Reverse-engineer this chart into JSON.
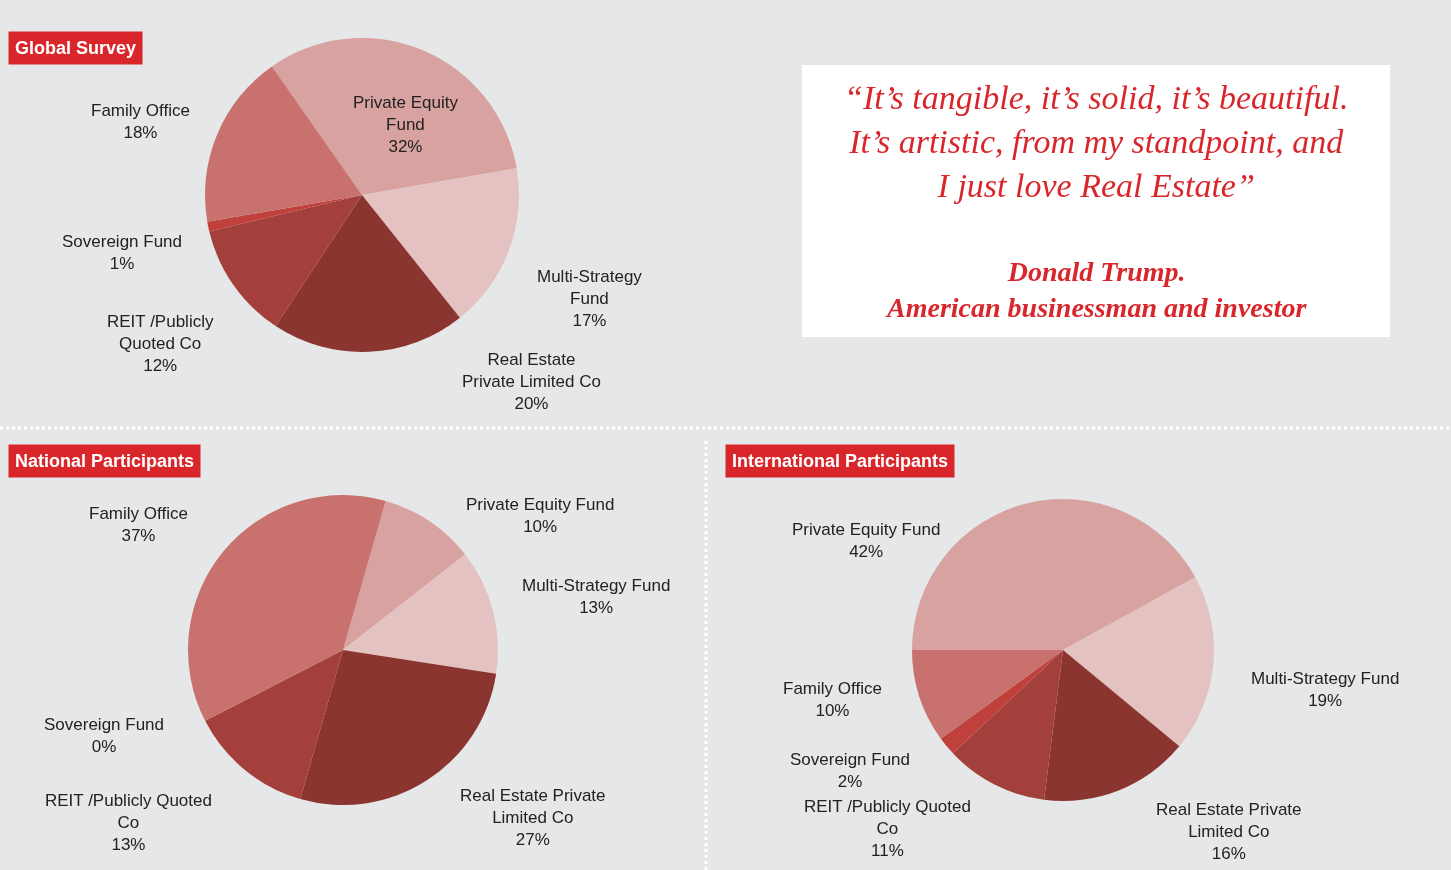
{
  "chart_data": [
    {
      "type": "pie",
      "title": "Global Survey",
      "categories": [
        "Private Equity\nFund",
        "Multi-Strategy\nFund",
        "Real Estate\nPrivate Limited Co",
        "REIT /Publicly\nQuoted Co",
        "Sovereign Fund",
        "Family Office"
      ],
      "values": [
        32,
        17,
        20,
        12,
        1,
        18
      ],
      "value_labels": [
        "32%",
        "17%",
        "20%",
        "12%",
        "1%",
        "18%"
      ],
      "colors": [
        "#d8a2a0",
        "#e4c2c1",
        "#8b3531",
        "#a3403c",
        "#c0403c",
        "#c8716e"
      ]
    },
    {
      "type": "other",
      "annotations": [
        "“It’s tangible, it’s solid, it’s beautiful.\nIt’s artistic, from my standpoint, and\nI just love Real Estate”",
        "Donald Trump.\nAmerican businessman and investor"
      ]
    },
    {
      "type": "pie",
      "title": "National Participants",
      "categories": [
        "Private Equity Fund",
        "Multi-Strategy Fund",
        "Real Estate Private\nLimited Co",
        "REIT /Publicly Quoted\nCo",
        "Sovereign Fund",
        "Family Office"
      ],
      "values": [
        10,
        13,
        27,
        13,
        0,
        37
      ],
      "value_labels": [
        "10%",
        "13%",
        "27%",
        "13%",
        "0%",
        "37%"
      ],
      "colors": [
        "#d8a2a0",
        "#e4c2c1",
        "#8b3531",
        "#a3403c",
        "#c0403c",
        "#c8716e"
      ]
    },
    {
      "type": "pie",
      "title": "International Participants",
      "categories": [
        "Private Equity Fund",
        "Multi-Strategy Fund",
        "Real Estate Private\nLimited Co",
        "REIT /Publicly Quoted\nCo",
        "Sovereign Fund",
        "Family Office"
      ],
      "values": [
        42,
        19,
        16,
        11,
        2,
        10
      ],
      "value_labels": [
        "42%",
        "19%",
        "16%",
        "11%",
        "2%",
        "10%"
      ],
      "colors": [
        "#d8a2a0",
        "#e4c2c1",
        "#8b3531",
        "#a3403c",
        "#c0403c",
        "#c8716e"
      ]
    }
  ]
}
